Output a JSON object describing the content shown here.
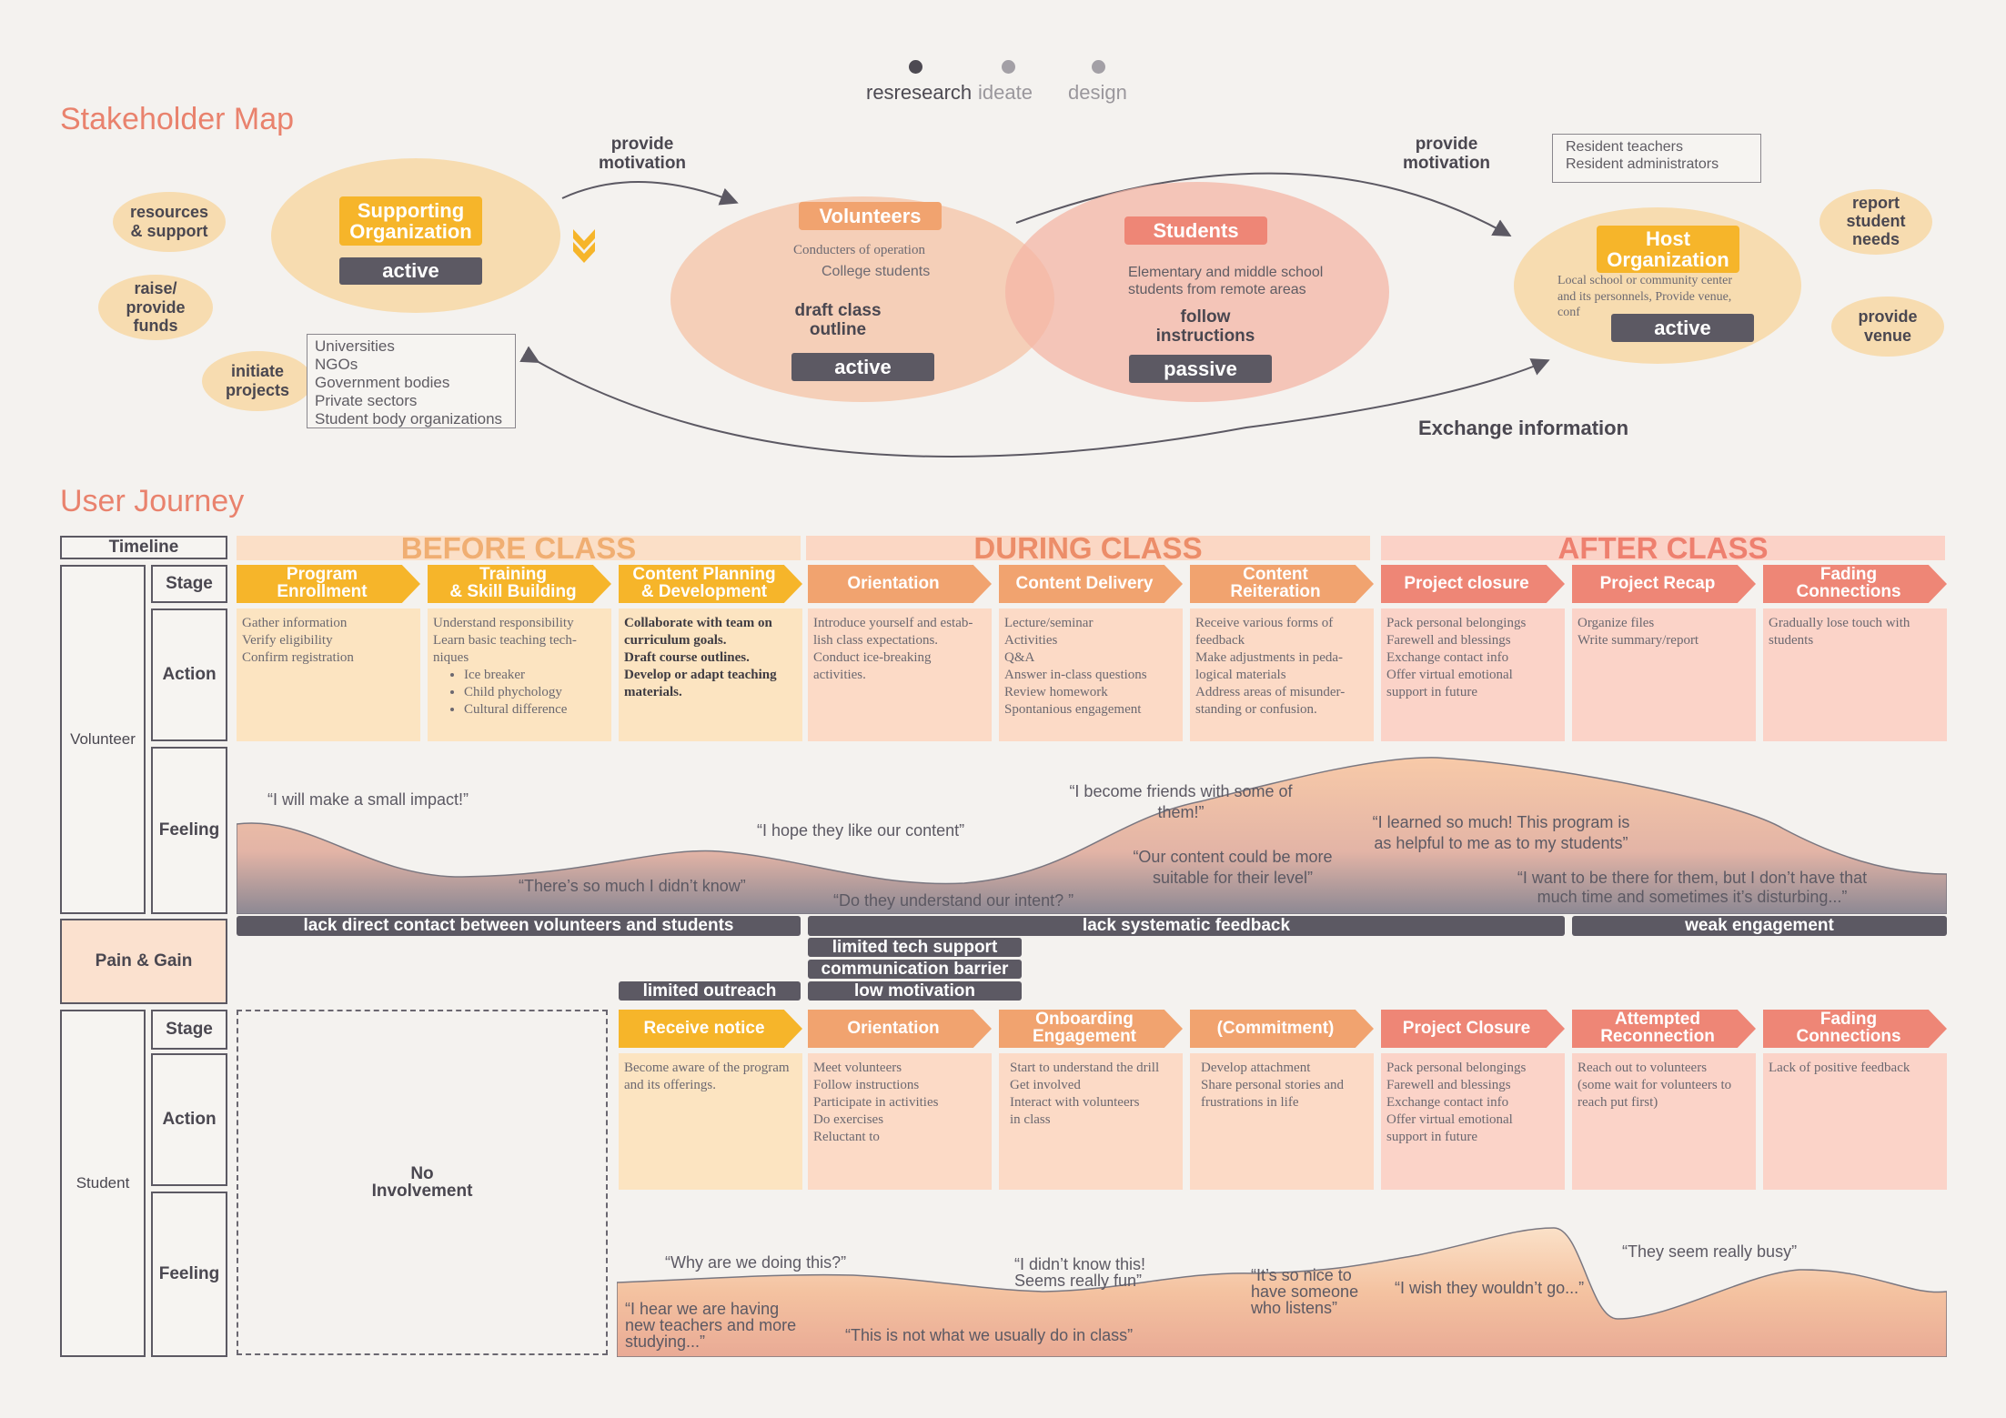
{
  "nav": {
    "steps": [
      "resresearch",
      "ideate",
      "design"
    ],
    "active_color": "#4d4a52",
    "inactive_color": "#9d9aa0"
  },
  "stakeholder": {
    "title": "Stakeholder Map",
    "left_bubbles": [
      "resources\n& support",
      "raise/\nprovide\nfunds",
      "initiate\nprojects"
    ],
    "supporting": {
      "name": "Supporting\nOrganization",
      "role": "active",
      "list": [
        "Universities",
        "NGOs",
        "Government bodies",
        "Private sectors",
        "Student body organizations"
      ]
    },
    "arrow1_label": "provide\nmotivation",
    "volunteers": {
      "name": "Volunteers",
      "desc1": "Conducters of operation",
      "desc2": "College students",
      "action": "draft class\noutline",
      "role": "active"
    },
    "students": {
      "name": "Students",
      "desc": "Elementary and middle school\nstudents from remote areas",
      "action": "follow\ninstructions",
      "role": "passive"
    },
    "arrow2_label": "provide\nmotivation",
    "host": {
      "name": "Host\nOrganization",
      "desc": "Local school or community center\nand its personnels, Provide venue,\nconf",
      "role": "active",
      "list": [
        "Resident teachers",
        "Resident administrators"
      ]
    },
    "right_bubbles": [
      "report\nstudent\nneeds",
      "provide\nvenue"
    ],
    "exchange_label": "Exchange information"
  },
  "journey": {
    "title": "User Journey",
    "timeline_label": "Timeline",
    "phases": [
      "BEFORE CLASS",
      "DURING CLASS",
      "AFTER CLASS"
    ],
    "volunteer_label": "Volunteer",
    "student_label": "Student",
    "row_labels": {
      "stage": "Stage",
      "action": "Action",
      "feeling": "Feeling"
    },
    "volunteer_stages": [
      "Program\nEnrollment",
      "Training\n& Skill Building",
      "Content Planning\n& Development",
      "Orientation",
      "Content Delivery",
      "Content\nReiteration",
      "Project closure",
      "Project Recap",
      "Fading\nConnections"
    ],
    "volunteer_actions": [
      {
        "lines": [
          "Gather information",
          "Verify eligibility",
          "Confirm registration"
        ]
      },
      {
        "lines": [
          "Understand responsibility",
          "Learn basic teaching tech-",
          "niques"
        ],
        "bullets": [
          "Ice breaker",
          "Child phychology",
          "Cultural difference"
        ]
      },
      {
        "lines": [
          "Collaborate with team on",
          "curriculum goals.",
          "Draft course outlines.",
          "Develop or adapt teaching",
          "materials."
        ],
        "bold": true
      },
      {
        "lines": [
          "Introduce yourself and estab-",
          "lish class expectations.",
          "Conduct ice-breaking",
          "activities."
        ]
      },
      {
        "lines": [
          "Lecture/seminar",
          "Activities",
          "Q&A",
          "Answer in-class questions",
          "Review homework",
          "Spontanious engagement"
        ]
      },
      {
        "lines": [
          "Receive various forms of",
          "feedback",
          "Make adjustments in peda-",
          "logical materials",
          "Address areas of misunder-",
          "standing or confusion."
        ]
      },
      {
        "lines": [
          "Pack personal belongings",
          "Farewell and blessings",
          "Exchange contact info",
          "Offer virtual emotional",
          "support in future"
        ]
      },
      {
        "lines": [
          "Organize files",
          "Write summary/report"
        ]
      },
      {
        "lines": [
          "Gradually lose touch with",
          "students"
        ]
      }
    ],
    "volunteer_quotes": [
      "“I will make a small impact!”",
      "“There’s so much I didn’t know”",
      "“I hope they like our content”",
      "“Do they understand our intent? ”",
      "“I become friends with some of\nthem!”",
      "“Our content could be more\nsuitable for their level”",
      "“I learned so much! This program is\nas helpful to me as to my students”",
      "“I want to be there for them, but I don’t have that\nmuch time and sometimes it’s disturbing...”"
    ],
    "pain_gain_label": "Pain & Gain",
    "pains": [
      "lack direct contact between volunteers and students",
      "lack systematic feedback",
      "weak engagement",
      "limited tech support",
      "communication barrier",
      "low motivation",
      "limited outreach"
    ],
    "no_involvement": "No\nInvolvement",
    "student_stages": [
      "Receive notice",
      "Orientation",
      "Onboarding\nEngagement",
      "(Commitment)",
      "Project Closure",
      "Attempted\nReconnection",
      "Fading\nConnections"
    ],
    "student_actions": [
      [
        "Become aware of the program",
        "and its offerings."
      ],
      [
        "Meet volunteers",
        "Follow instructions",
        "Participate in activities",
        "Do exercises",
        "Reluctant to"
      ],
      [
        "Start to understand the drill",
        "Get involved",
        "Interact with volunteers",
        "in class"
      ],
      [
        "Develop attachment",
        "Share personal stories and",
        "frustrations in life"
      ],
      [
        "Pack personal belongings",
        "Farewell and blessings",
        "Exchange contact info",
        "Offer virtual emotional",
        "support in future"
      ],
      [
        "Reach out to volunteers",
        "(some wait for volunteers to",
        "reach put first)"
      ],
      [
        "Lack of positive feedback"
      ]
    ],
    "student_quotes": [
      "“Why are we doing this?”",
      "“I hear we are having\nnew teachers and more\nstudying...”",
      "“This is not what we usually do in class”",
      "“I didn’t know this!\nSeems really fun”",
      "“It’s so nice to\nhave someone\nwho listens”",
      "“I wish they wouldn’t go...”",
      "“They seem really busy”"
    ]
  },
  "colors": {
    "yellow": "#f6b52a",
    "orange": "#f1a36f",
    "salmon": "#ee8676",
    "dark": "#5c5963",
    "heading": "#e9826d"
  }
}
